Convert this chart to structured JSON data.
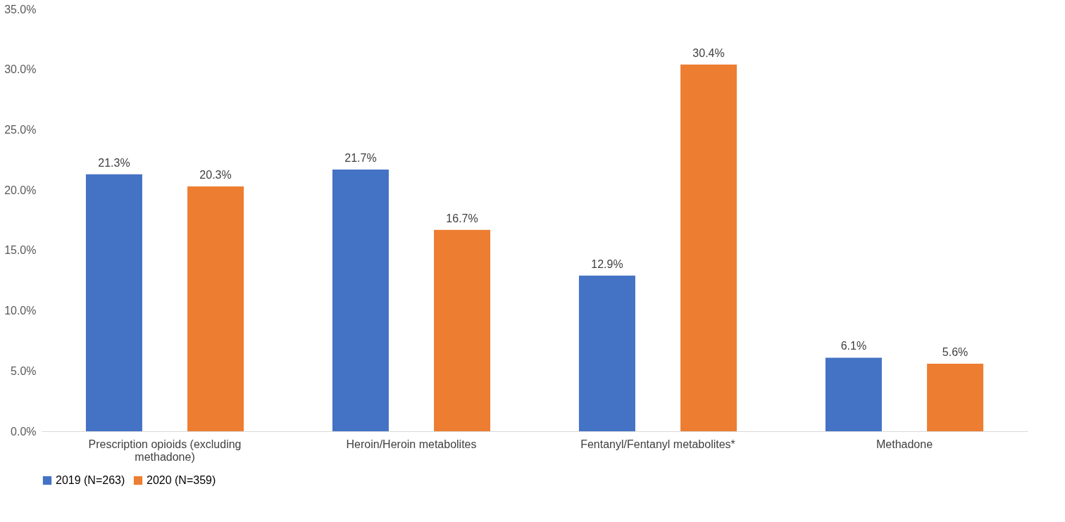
{
  "chart_data": {
    "type": "bar",
    "categories": [
      "Prescription opioids (excluding methadone)",
      "Heroin/Heroin metabolites",
      "Fentanyl/Fentanyl metabolites*",
      "Methadone"
    ],
    "series": [
      {
        "name": "2019 (N=263)",
        "color": "#4472c4",
        "values": [
          21.3,
          21.7,
          12.9,
          6.1
        ],
        "value_labels": [
          "21.3%",
          "21.7%",
          "12.9%",
          "6.1%"
        ]
      },
      {
        "name": "2020 (N=359)",
        "color": "#ed7d31",
        "values": [
          20.3,
          16.7,
          30.4,
          5.6
        ],
        "value_labels": [
          "20.3%",
          "16.7%",
          "30.4%",
          "5.6%"
        ]
      }
    ],
    "ylim": [
      0,
      35
    ],
    "yticks": [
      {
        "value": 0,
        "label": "0.0%"
      },
      {
        "value": 5,
        "label": "5.0%"
      },
      {
        "value": 10,
        "label": "10.0%"
      },
      {
        "value": 15,
        "label": "15.0%"
      },
      {
        "value": 20,
        "label": "20.0%"
      },
      {
        "value": 25,
        "label": "25.0%"
      },
      {
        "value": 30,
        "label": "30.0%"
      },
      {
        "value": 35,
        "label": "35.0%"
      }
    ],
    "grid": false,
    "legend": "bottom"
  }
}
